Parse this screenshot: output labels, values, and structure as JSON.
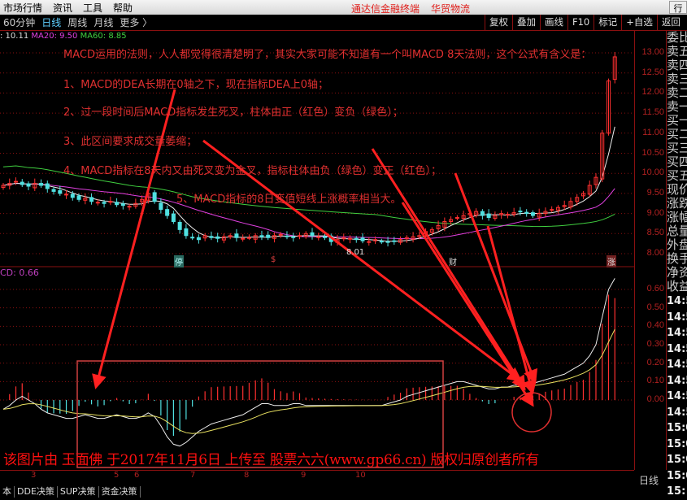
{
  "menu": {
    "items": [
      "市场行情",
      "资讯",
      "工具",
      "帮助"
    ],
    "center": [
      "通达信金融终端",
      "华贸物流"
    ],
    "right": "行"
  },
  "toolbar": {
    "periods": [
      "60分钟",
      "日线",
      "周线",
      "月线",
      "更多 〉"
    ],
    "active": 1,
    "buttons": [
      "复权",
      "叠加",
      "画线",
      "F10",
      "标记",
      "+自选",
      "返回"
    ]
  },
  "ma_legend": {
    "ma10": ": 10.11",
    "ma20": "MA20: 9.50",
    "ma60": "MA60: 8.85"
  },
  "annotations": [
    "MACD运用的法则，人人都觉得很清楚明了，其实大家可能不知道有一个叫MACD 8天法则，这个公式有含义是：",
    "1、MACD的DEA长期在0轴之下，现在指标DEA上0轴；",
    "2、过一段时间后MACD指标发生死叉，柱体由正（红色）变负（绿色）；",
    "3、此区间要求成交量萎缩；",
    "4、MACD指标在8天内又由死叉变为金叉，指标柱体由负（绿色）变正（红色）；",
    "5、MACD指标的8日变值短线上涨概率相当大。"
  ],
  "price_axis": [
    "13.00",
    "12.50",
    "12.00",
    "11.50",
    "11.00",
    "10.50",
    "10.00",
    "9.50",
    "9.00",
    "8.50",
    "8.00"
  ],
  "macd_axis": [
    "0.60",
    "0.50",
    "0.40",
    "0.30",
    "0.20",
    "0.10",
    "0.00"
  ],
  "macd_label": "CD: 0.66",
  "low_marker": "8.01",
  "chart_tags": [
    {
      "text": "停",
      "color": "#7fe0d0"
    },
    {
      "text": "$",
      "color": "#e04040"
    },
    {
      "text": "财",
      "color": "#ddd"
    },
    {
      "text": "涨",
      "color": "#ddd"
    }
  ],
  "right_panel": {
    "quote": [
      "委比",
      "卖五",
      "卖四",
      "卖三",
      "卖二",
      "卖一",
      "买一",
      "买二",
      "买三",
      "买四",
      "买五",
      "现价",
      "涨跌",
      "涨幅",
      "总量",
      "外盘",
      "换手",
      "净资",
      "收益"
    ],
    "times": [
      "14:5",
      "14:5",
      "14:5",
      "14:5",
      "14:5",
      "14:5",
      "14:5",
      "14:5",
      "15:0",
      "15:0",
      "15:0",
      "15:0",
      "15:"
    ]
  },
  "date_ticks": [
    "3",
    "5",
    "6",
    "7",
    "8",
    "9",
    "10"
  ],
  "bottom_tabs": [
    "本",
    "DDE决策",
    "SUP决策",
    "资金决策"
  ],
  "day_button": "日线",
  "watermark": "该图片由 玉面佛 于2017年11月6日 上传至 股票六六(www.gp66.cn) 版权归原创者所有",
  "colors": {
    "up": "#ff3030",
    "down": "#50e0e0",
    "ma20": "#e040e0",
    "ma60": "#40d040",
    "annotation": "#e03030",
    "grid": "#8a1010"
  },
  "chart_data": {
    "type": "candlestick+macd",
    "price_ylim": [
      8.0,
      13.0
    ],
    "closes": [
      9.7,
      9.75,
      9.8,
      9.72,
      9.68,
      9.75,
      9.7,
      9.62,
      9.55,
      9.5,
      9.48,
      9.4,
      9.35,
      9.38,
      9.3,
      9.28,
      9.25,
      9.3,
      9.22,
      9.2,
      9.18,
      9.25,
      9.35,
      9.5,
      9.3,
      9.1,
      8.95,
      8.8,
      8.6,
      8.45,
      8.4,
      8.35,
      8.45,
      8.4,
      8.38,
      8.42,
      8.45,
      8.4,
      8.38,
      8.4,
      8.45,
      8.42,
      8.4,
      8.45,
      8.48,
      8.42,
      8.4,
      8.45,
      8.5,
      8.45,
      8.42,
      8.4,
      8.3,
      8.35,
      8.4,
      8.38,
      8.35,
      8.32,
      8.3,
      8.35,
      8.3,
      8.28,
      8.3,
      8.35,
      8.4,
      8.42,
      8.45,
      8.55,
      8.6,
      8.7,
      8.8,
      8.85,
      8.9,
      8.95,
      9.0,
      9.05,
      8.95,
      8.9,
      8.95,
      9.0,
      8.98,
      9.02,
      9.05,
      9.0,
      8.95,
      9.0,
      9.05,
      9.1,
      9.15,
      9.2,
      9.3,
      9.4,
      9.5,
      9.7,
      9.9,
      11.0,
      12.3,
      12.9
    ],
    "macd_ylim": [
      -0.28,
      0.66
    ],
    "dif": [
      -0.05,
      -0.03,
      0.0,
      0.02,
      0.0,
      -0.02,
      -0.05,
      -0.07,
      -0.08,
      -0.09,
      -0.1,
      -0.1,
      -0.09,
      -0.08,
      -0.09,
      -0.1,
      -0.1,
      -0.09,
      -0.08,
      -0.09,
      -0.1,
      -0.1,
      -0.09,
      -0.07,
      -0.09,
      -0.14,
      -0.2,
      -0.24,
      -0.25,
      -0.23,
      -0.2,
      -0.17,
      -0.15,
      -0.13,
      -0.12,
      -0.11,
      -0.1,
      -0.09,
      -0.08,
      -0.06,
      -0.04,
      -0.02,
      -0.02,
      -0.03,
      -0.03,
      -0.03,
      -0.02,
      -0.02,
      -0.03,
      -0.03,
      -0.03,
      -0.03,
      -0.03,
      -0.03,
      -0.03,
      -0.03,
      -0.03,
      -0.03,
      -0.03,
      -0.03,
      -0.03,
      -0.02,
      -0.01,
      0.0,
      0.02,
      0.03,
      0.04,
      0.05,
      0.06,
      0.07,
      0.08,
      0.09,
      0.1,
      0.1,
      0.09,
      0.08,
      0.07,
      0.06,
      0.06,
      0.07,
      0.07,
      0.08,
      0.08,
      0.08,
      0.09,
      0.1,
      0.11,
      0.12,
      0.13,
      0.14,
      0.16,
      0.18,
      0.2,
      0.24,
      0.3,
      0.45,
      0.6,
      0.66
    ],
    "signals": [
      "停",
      "$",
      "财",
      "涨"
    ]
  }
}
